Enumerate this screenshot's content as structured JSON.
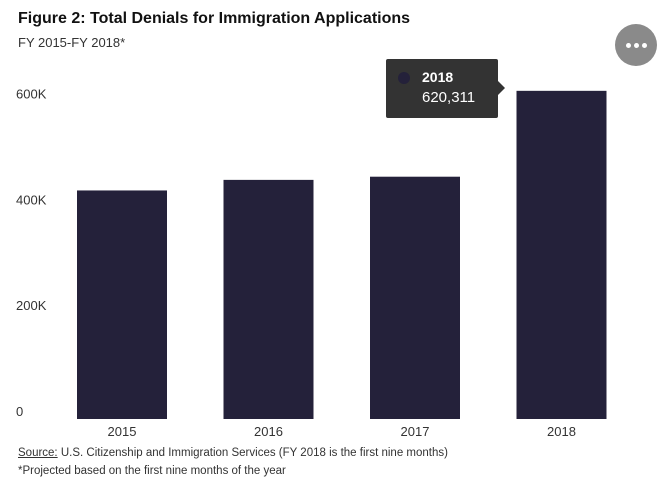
{
  "chart_data": {
    "type": "bar",
    "title": "Figure 2: Total Denials for Immigration Applications",
    "subtitle": "FY 2015-FY 2018*",
    "categories": [
      "2015",
      "2016",
      "2017",
      "2018"
    ],
    "values": [
      432000,
      452000,
      458000,
      620311
    ],
    "ylim": [
      0,
      620000
    ],
    "yticks": [
      0,
      200000,
      400000,
      600000
    ],
    "ytick_labels": [
      "0",
      "200K",
      "400K",
      "600K"
    ],
    "xlabel": "",
    "ylabel": "",
    "grid": false,
    "bar_color": "#24213a",
    "tooltip": {
      "label": "2018",
      "value": "620,311"
    }
  },
  "source": {
    "label": "Source:",
    "text": " U.S. Citizenship and Immigration Services (FY 2018 is the first nine months)"
  },
  "footnote": "*Projected based on the first nine months of the year",
  "menu": {
    "icon": "more-horizontal-icon"
  }
}
